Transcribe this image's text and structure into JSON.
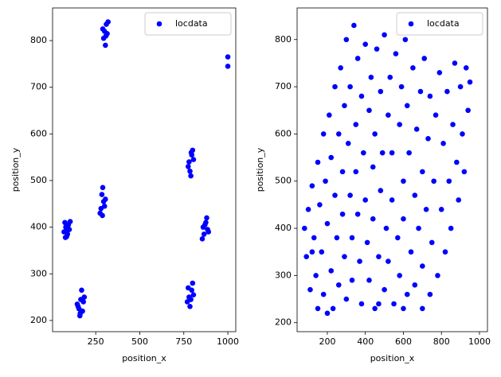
{
  "chart_data": [
    {
      "type": "scatter",
      "xlabel": "position_x",
      "ylabel": "position_y",
      "legend": "upper right",
      "xlim": [
        5,
        1045
      ],
      "ylim": [
        176,
        870
      ],
      "xticks": [
        250,
        500,
        750,
        1000
      ],
      "yticks": [
        200,
        300,
        400,
        500,
        600,
        700,
        800
      ],
      "x": [
        80,
        90,
        75,
        100,
        85,
        95,
        70,
        105,
        88,
        78,
        150,
        165,
        175,
        160,
        180,
        145,
        170,
        155,
        185,
        162,
        280,
        295,
        285,
        300,
        275,
        290,
        305,
        288,
        300,
        310,
        295,
        315,
        305,
        290,
        320,
        308,
        780,
        795,
        785,
        800,
        775,
        805,
        790,
        792,
        780,
        795,
        770,
        800,
        785,
        805,
        775,
        790,
        860,
        875,
        865,
        885,
        855,
        880,
        870,
        890,
        1000,
        1000
      ],
      "series": [
        {
          "name": "locdata",
          "color": "#0000ff",
          "values": [
            400,
            385,
            410,
            395,
            380,
            405,
            390,
            412,
            392,
            378,
            230,
            245,
            220,
            210,
            240,
            235,
            265,
            225,
            250,
            215,
            440,
            455,
            470,
            445,
            430,
            485,
            460,
            425,
            820,
            835,
            805,
            815,
            790,
            825,
            840,
            810,
            540,
            555,
            520,
            565,
            530,
            545,
            510,
            560,
            250,
            265,
            240,
            280,
            230,
            255,
            270,
            245,
            400,
            410,
            385,
            395,
            375,
            420,
            405,
            390,
            765,
            745
          ]
        }
      ]
    },
    {
      "type": "scatter",
      "xlabel": "position_x",
      "ylabel": "position_y",
      "legend": "upper right",
      "xlim": [
        41,
        1042
      ],
      "ylim": [
        181,
        867
      ],
      "xticks": [
        200,
        400,
        600,
        800,
        1000
      ],
      "yticks": [
        200,
        300,
        400,
        500,
        600,
        700,
        800
      ],
      "x": [
        80,
        90,
        100,
        110,
        120,
        130,
        140,
        150,
        150,
        160,
        170,
        180,
        180,
        190,
        200,
        200,
        210,
        220,
        220,
        230,
        240,
        240,
        250,
        260,
        260,
        270,
        280,
        280,
        290,
        290,
        300,
        300,
        310,
        320,
        320,
        330,
        330,
        340,
        350,
        350,
        360,
        360,
        370,
        380,
        380,
        390,
        400,
        400,
        410,
        420,
        420,
        430,
        440,
        440,
        450,
        450,
        460,
        470,
        480,
        480,
        490,
        500,
        500,
        510,
        520,
        520,
        530,
        540,
        540,
        550,
        560,
        570,
        580,
        580,
        590,
        600,
        600,
        610,
        620,
        620,
        630,
        640,
        650,
        660,
        660,
        670,
        680,
        690,
        700,
        700,
        710,
        720,
        730,
        740,
        740,
        750,
        760,
        770,
        780,
        790,
        800,
        810,
        820,
        830,
        840,
        850,
        860,
        870,
        880,
        890,
        900,
        910,
        920,
        930,
        940,
        950,
        120,
        600,
        470,
        700
      ],
      "series": [
        {
          "name": "locdata",
          "color": "#0000ff",
          "values": [
            400,
            340,
            440,
            270,
            490,
            380,
            300,
            540,
            230,
            450,
            350,
            260,
            600,
            500,
            410,
            220,
            640,
            310,
            550,
            230,
            470,
            700,
            380,
            600,
            280,
            740,
            520,
            430,
            660,
            340,
            250,
            800,
            580,
            470,
            700,
            380,
            290,
            830,
            620,
            520,
            760,
            430,
            330,
            680,
            240,
            560,
            460,
            790,
            370,
            650,
            290,
            720,
            530,
            420,
            600,
            230,
            780,
            340,
            690,
            480,
            560,
            270,
            810,
            400,
            640,
            330,
            720,
            460,
            560,
            240,
            770,
            380,
            620,
            300,
            700,
            500,
            420,
            800,
            260,
            660,
            560,
            350,
            740,
            470,
            280,
            610,
            400,
            690,
            520,
            320,
            760,
            440,
            590,
            260,
            680,
            370,
            500,
            640,
            300,
            730,
            440,
            580,
            350,
            690,
            500,
            400,
            620,
            750,
            540,
            460,
            700,
            600,
            520,
            740,
            650,
            710,
            350,
            230,
            240,
            230
          ]
        }
      ]
    }
  ]
}
